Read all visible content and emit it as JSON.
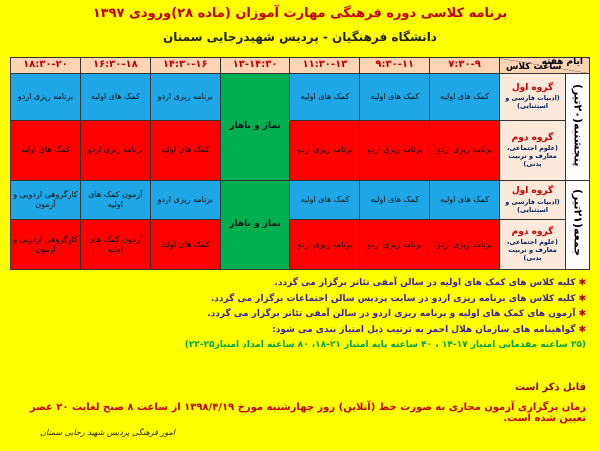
{
  "header": {
    "title": "برنامه کلاسی دوره فرهنگی مهارت آموزان (ماده ۲۸)ورودی ۱۳۹۷",
    "subtitle": "دانشگاه فرهنگیان - پردیس شهیدرجایی سمنان"
  },
  "table": {
    "corner": {
      "top": "ساعت کلاس",
      "bottom": "ایام هفته"
    },
    "times": [
      "۷:۳۰-۹",
      "۹:۳۰-۱۱",
      "۱۱:۳۰-۱۳",
      "۱۳-۱۴:۳۰",
      "۱۴:۳۰-۱۶",
      "۱۶:۳۰-۱۸",
      "۱۸:۳۰-۲۰"
    ],
    "days": [
      {
        "label": "پنجشنبه(۲۰تیر)",
        "break": "نماز و ناهار",
        "groups": [
          {
            "name": "گروه اول",
            "note": "(ادبیات فارسی و استثنایی)",
            "cells": [
              "کمک های اولیه",
              "کمک های اولیه",
              "کمک های اولیه",
              "برنامه ریزی اردو",
              "کمک های اولیه",
              "برنامه ریزی اردو"
            ]
          },
          {
            "name": "گروه دوم",
            "note": "(علوم اجتماعی، معارف و تربیت بدنی)",
            "cells": [
              "برنامه ریزی اردو",
              "برنامه ریزی اردو",
              "برنامه ریزی اردو",
              "کمک های اولیه",
              "برنامه ریزی اردو",
              "کمک های اولیه"
            ]
          }
        ]
      },
      {
        "label": "جمعه(۲۱تیر)",
        "break": "نماز و ناهار",
        "groups": [
          {
            "name": "گروه اول",
            "note": "(ادبیات فارسی و استثنایی)",
            "cells": [
              "کمک های اولیه",
              "کمک های اولیه",
              "کمک های اولیه",
              "برنامه ریزی اردو",
              "آزمون کمک های اولیه",
              "کارگروهی اردویی و آزمون"
            ]
          },
          {
            "name": "گروه دوم",
            "note": "(علوم اجتماعی، معارف و تربیت بدنی)",
            "cells": [
              "برنامه ریزی اردو",
              "برنامه ریزی اردو",
              "برنامه ریزی اردو",
              "کمک های اولیه",
              "آزمون کمک های اولیه",
              "کارگروهی اردویی و آزمون"
            ]
          }
        ]
      }
    ]
  },
  "notes": {
    "items": [
      "کلیه کلاس های کمک های اولیه در سالن آمفی تئاتر برگزار می گردد.",
      "کلیه کلاس های برنامه ریزی اردو در سایت پردیس سالن اجتماعات برگزار می گردد.",
      "آزمون های کمک های اولیه و برنامه ریزی اردو در سالن آمفی تئاتر برگزار می گردد.",
      "گواهینامه های سازمان هلال احمر به ترتیب ذیل امتیاز بندی می شود:"
    ],
    "range": "(۳۵ ساعته مقدماتی امتیاز ۱۷-۱۴ ، ۴۰ ساعته پایه امتیاز ۲۱-۱۸، ۸۰ ساعته امداد امتیاز۲۵-۲۲)"
  },
  "footer": {
    "mention": "قابل ذکر است",
    "exam": "زمان برگزاری آزمون مجازی به صورت خط (آنلاین) روز چهارشنبه مورخ ۱۳۹۸/۴/۱۹ از ساعت ۸ صبح لغایت ۲۰ عصر تعیین شده است.",
    "signature": "امور فرهنگی پردیس شهید رجایی سمنان"
  }
}
